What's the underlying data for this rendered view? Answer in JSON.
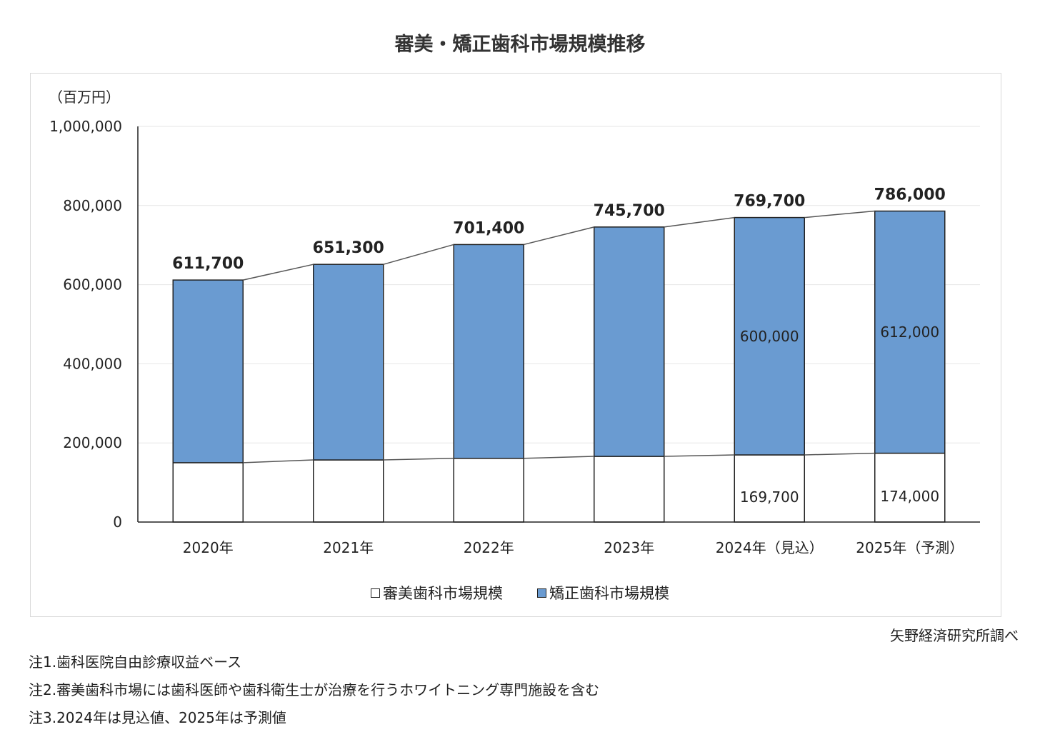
{
  "chart_data": {
    "type": "bar",
    "stacked": true,
    "title": "審美・矯正歯科市場規模推移",
    "ylabel": "（百万円）",
    "xlabel": "",
    "ylim": [
      0,
      1000000
    ],
    "yticks": [
      "0",
      "200,000",
      "400,000",
      "600,000",
      "800,000",
      "1,000,000"
    ],
    "ytick_values": [
      0,
      200000,
      400000,
      600000,
      800000,
      1000000
    ],
    "categories": [
      "2020年",
      "2021年",
      "2022年",
      "2023年",
      "2024年（見込）",
      "2025年（予測）"
    ],
    "series": [
      {
        "name": "審美歯科市場規模",
        "color": "#ffffff",
        "values": [
          150000,
          157000,
          161000,
          166000,
          169700,
          174000
        ]
      },
      {
        "name": "矯正歯科市場規模",
        "color": "#6a9bd1",
        "values": [
          461700,
          494300,
          540400,
          579700,
          600000,
          612000
        ]
      }
    ],
    "totals": [
      611700,
      651300,
      701400,
      745700,
      769700,
      786000
    ],
    "total_labels": [
      "611,700",
      "651,300",
      "701,400",
      "745,700",
      "769,700",
      "786,000"
    ],
    "segment_labels": [
      {
        "index": 4,
        "cosmetic": "169,700",
        "ortho": "600,000"
      },
      {
        "index": 5,
        "cosmetic": "174,000",
        "ortho": "612,000"
      }
    ],
    "legend": [
      "審美歯科市場規模",
      "矯正歯科市場規模"
    ]
  },
  "source": "矢野経済研究所調べ",
  "notes": [
    "注1.歯科医院自由診療収益ベース",
    "注2.審美歯科市場には歯科医師や歯科衛生士が治療を行うホワイトニング専門施設を含む",
    "注3.2024年は見込値、2025年は予測値"
  ]
}
